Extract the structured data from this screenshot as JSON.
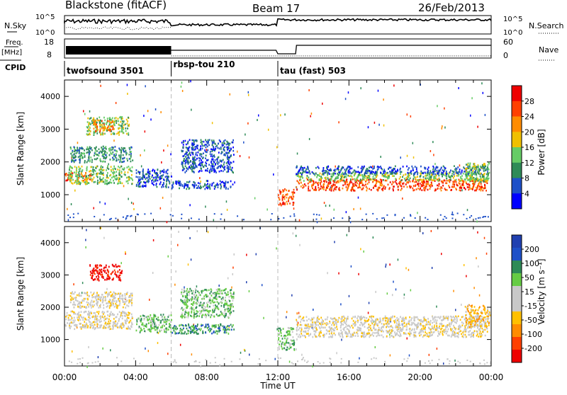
{
  "header": {
    "station": "Blackstone (fitACF)",
    "beam": "Beam 17",
    "date": "26/Feb/2013"
  },
  "left_labels": {
    "nsky": "N.Sky",
    "nsky_ticks": [
      "10^5",
      "10^0"
    ],
    "freq": "Freq.",
    "freq_unit": "[MHz]",
    "freq_ticks": [
      "18",
      "8"
    ],
    "cpid": "CPID"
  },
  "right_labels": {
    "nsearch": "N.Search",
    "nsearch_ticks": [
      "10^5",
      "10^0"
    ],
    "nave": "Nave",
    "nave_ticks": [
      "60",
      "0"
    ]
  },
  "cpid_segments": [
    {
      "label": "twofsound 3501",
      "start_hour": 0.0
    },
    {
      "label": "rbsp-tou 210",
      "start_hour": 6.0
    },
    {
      "label": "tau (fast) 503",
      "start_hour": 12.0
    }
  ],
  "colors": {
    "power": [
      "#0000ff",
      "#1e50c8",
      "#2e8b57",
      "#66cc66",
      "#f0c000",
      "#ff8c00",
      "#ff4000",
      "#ee0000"
    ],
    "velocity": [
      "#ee0000",
      "#ff4000",
      "#ff8c00",
      "#ffc000",
      "#c8c8c8",
      "#c8c8c8",
      "#66cc44",
      "#2e8b57",
      "#1e50c8",
      "#2040b0"
    ],
    "ground": "#c8c8c8"
  },
  "chart_data": [
    {
      "type": "heatmap",
      "name": "power",
      "ylabel": "Slant Range [km]",
      "colorbar_label": "Power [dB]",
      "colorbar_ticks": [
        "28",
        "24",
        "20",
        "16",
        "12",
        "8",
        "4"
      ],
      "xlim": [
        0,
        24
      ],
      "ylim": [
        180,
        4500
      ],
      "y_ticks": [
        "1000",
        "2000",
        "3000",
        "4000"
      ],
      "echo_regions": [
        {
          "t0": 0.0,
          "t1": 1.5,
          "r0": 1450,
          "r1": 1700,
          "level": 6
        },
        {
          "t0": 0.2,
          "t1": 3.8,
          "r0": 1350,
          "r1": 1900,
          "level": 3
        },
        {
          "t0": 0.3,
          "t1": 3.8,
          "r0": 2000,
          "r1": 2500,
          "level": 2
        },
        {
          "t0": 1.2,
          "t1": 3.6,
          "r0": 2850,
          "r1": 3400,
          "level": 3
        },
        {
          "t0": 1.6,
          "t1": 2.7,
          "r0": 2950,
          "r1": 3300,
          "level": 5
        },
        {
          "t0": 4.0,
          "t1": 6.0,
          "r0": 1250,
          "r1": 1800,
          "level": 1
        },
        {
          "t0": 6.0,
          "t1": 9.5,
          "r0": 1200,
          "r1": 1450,
          "level": 1
        },
        {
          "t0": 6.5,
          "t1": 9.5,
          "r0": 1700,
          "r1": 2700,
          "level": 1
        },
        {
          "t0": 12.0,
          "t1": 12.9,
          "r0": 700,
          "r1": 1200,
          "level": 6
        },
        {
          "t0": 13.0,
          "t1": 23.8,
          "r0": 1150,
          "r1": 1500,
          "level": 6
        },
        {
          "t0": 13.0,
          "t1": 23.8,
          "r0": 1450,
          "r1": 1700,
          "level": 3
        },
        {
          "t0": 13.0,
          "t1": 23.8,
          "r0": 1650,
          "r1": 1900,
          "level": 1
        },
        {
          "t0": 22.5,
          "t1": 23.9,
          "r0": 1400,
          "r1": 2000,
          "level": 3
        }
      ]
    },
    {
      "type": "heatmap",
      "name": "velocity",
      "ylabel": "Slant Range [km]",
      "colorbar_label": "Velocity [m s⁻¹]",
      "colorbar_ticks": [
        "200",
        "100",
        "50",
        "15",
        "-15",
        "-50",
        "-100",
        "-200"
      ],
      "xlabel": "Time UT",
      "x_ticks": [
        "00:00",
        "04:00",
        "08:00",
        "12:00",
        "16:00",
        "20:00",
        "00:00"
      ],
      "xlim": [
        0,
        24
      ],
      "ylim": [
        180,
        4500
      ],
      "y_ticks": [
        "1000",
        "2000",
        "3000",
        "4000"
      ],
      "echo_regions": [
        {
          "t0": 0.0,
          "t1": 3.8,
          "r0": 1350,
          "r1": 1900,
          "level": 4
        },
        {
          "t0": 0.3,
          "t1": 3.8,
          "r0": 2000,
          "r1": 2500,
          "level": 4
        },
        {
          "t0": 1.4,
          "t1": 3.2,
          "r0": 2850,
          "r1": 3350,
          "level": 0
        },
        {
          "t0": 4.0,
          "t1": 6.0,
          "r0": 1250,
          "r1": 1800,
          "level": 6
        },
        {
          "t0": 6.0,
          "t1": 9.5,
          "r0": 1200,
          "r1": 1500,
          "level": 7
        },
        {
          "t0": 6.5,
          "t1": 9.5,
          "r0": 1700,
          "r1": 2600,
          "level": 6
        },
        {
          "t0": 12.0,
          "t1": 12.9,
          "r0": 700,
          "r1": 1400,
          "level": 6
        },
        {
          "t0": 13.0,
          "t1": 23.8,
          "r0": 1100,
          "r1": 1750,
          "level": 4
        },
        {
          "t0": 22.5,
          "t1": 23.9,
          "r0": 1400,
          "r1": 2100,
          "level": 3
        }
      ]
    }
  ]
}
